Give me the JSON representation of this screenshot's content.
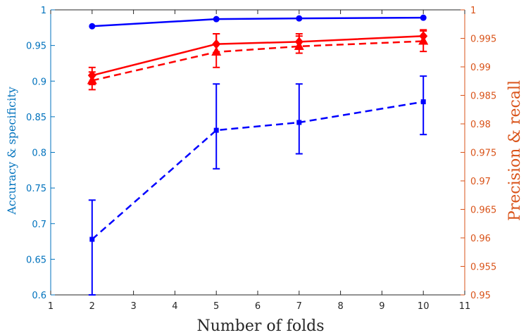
{
  "chart_data": {
    "type": "line",
    "title": "",
    "xlabel": "Number of folds",
    "ylabel_left": "Accuracy & specificity",
    "ylabel_right": "Precision & recall",
    "xlim": [
      1,
      11
    ],
    "ylim_left": [
      0.6,
      1
    ],
    "ylim_right": [
      0.95,
      1
    ],
    "x_ticks": [
      "1",
      "2",
      "3",
      "4",
      "5",
      "6",
      "7",
      "8",
      "9",
      "10",
      "11"
    ],
    "y_left_ticks": [
      "0.6",
      "0.65",
      "0.7",
      "0.75",
      "0.8",
      "0.85",
      "0.9",
      "0.95",
      "1"
    ],
    "y_right_ticks": [
      "0.95",
      "0.955",
      "0.96",
      "0.965",
      "0.97",
      "0.975",
      "0.98",
      "0.985",
      "0.99",
      "0.995",
      "1"
    ],
    "grid": false,
    "legend": "none",
    "colors": {
      "left_axis": "#0072BD",
      "right_axis": "#D95319",
      "blue": "#0000ff",
      "red": "#ff0000"
    },
    "series": [
      {
        "axis": "left",
        "color": "#0000ff",
        "style": "solid",
        "marker": "circle",
        "x": [
          2,
          5,
          7,
          10
        ],
        "y": [
          0.977,
          0.987,
          0.988,
          0.989
        ]
      },
      {
        "axis": "left",
        "color": "#0000ff",
        "style": "dashed",
        "marker": "square",
        "x": [
          2,
          5,
          7,
          10
        ],
        "y": [
          0.678,
          0.831,
          0.842,
          0.871
        ],
        "err_low": [
          0.6,
          0.777,
          0.798,
          0.825
        ],
        "err_high": [
          0.733,
          0.896,
          0.896,
          0.907
        ]
      },
      {
        "axis": "right",
        "color": "#ff0000",
        "style": "solid",
        "marker": "diamond",
        "x": [
          2,
          5,
          7,
          10
        ],
        "y": [
          0.9885,
          0.994,
          0.9944,
          0.9954
        ],
        "err_low": [
          0.9869,
          0.9923,
          0.9931,
          0.9943
        ],
        "err_high": [
          0.9899,
          0.9958,
          0.9958,
          0.9963
        ]
      },
      {
        "axis": "right",
        "color": "#ff0000",
        "style": "dashed",
        "marker": "triangle",
        "x": [
          2,
          5,
          7,
          10
        ],
        "y": [
          0.9876,
          0.9926,
          0.9936,
          0.9945
        ],
        "err_low": [
          0.986,
          0.9899,
          0.9924,
          0.9927
        ],
        "err_high": [
          0.9891,
          0.9958,
          0.9954,
          0.9965
        ]
      }
    ]
  }
}
